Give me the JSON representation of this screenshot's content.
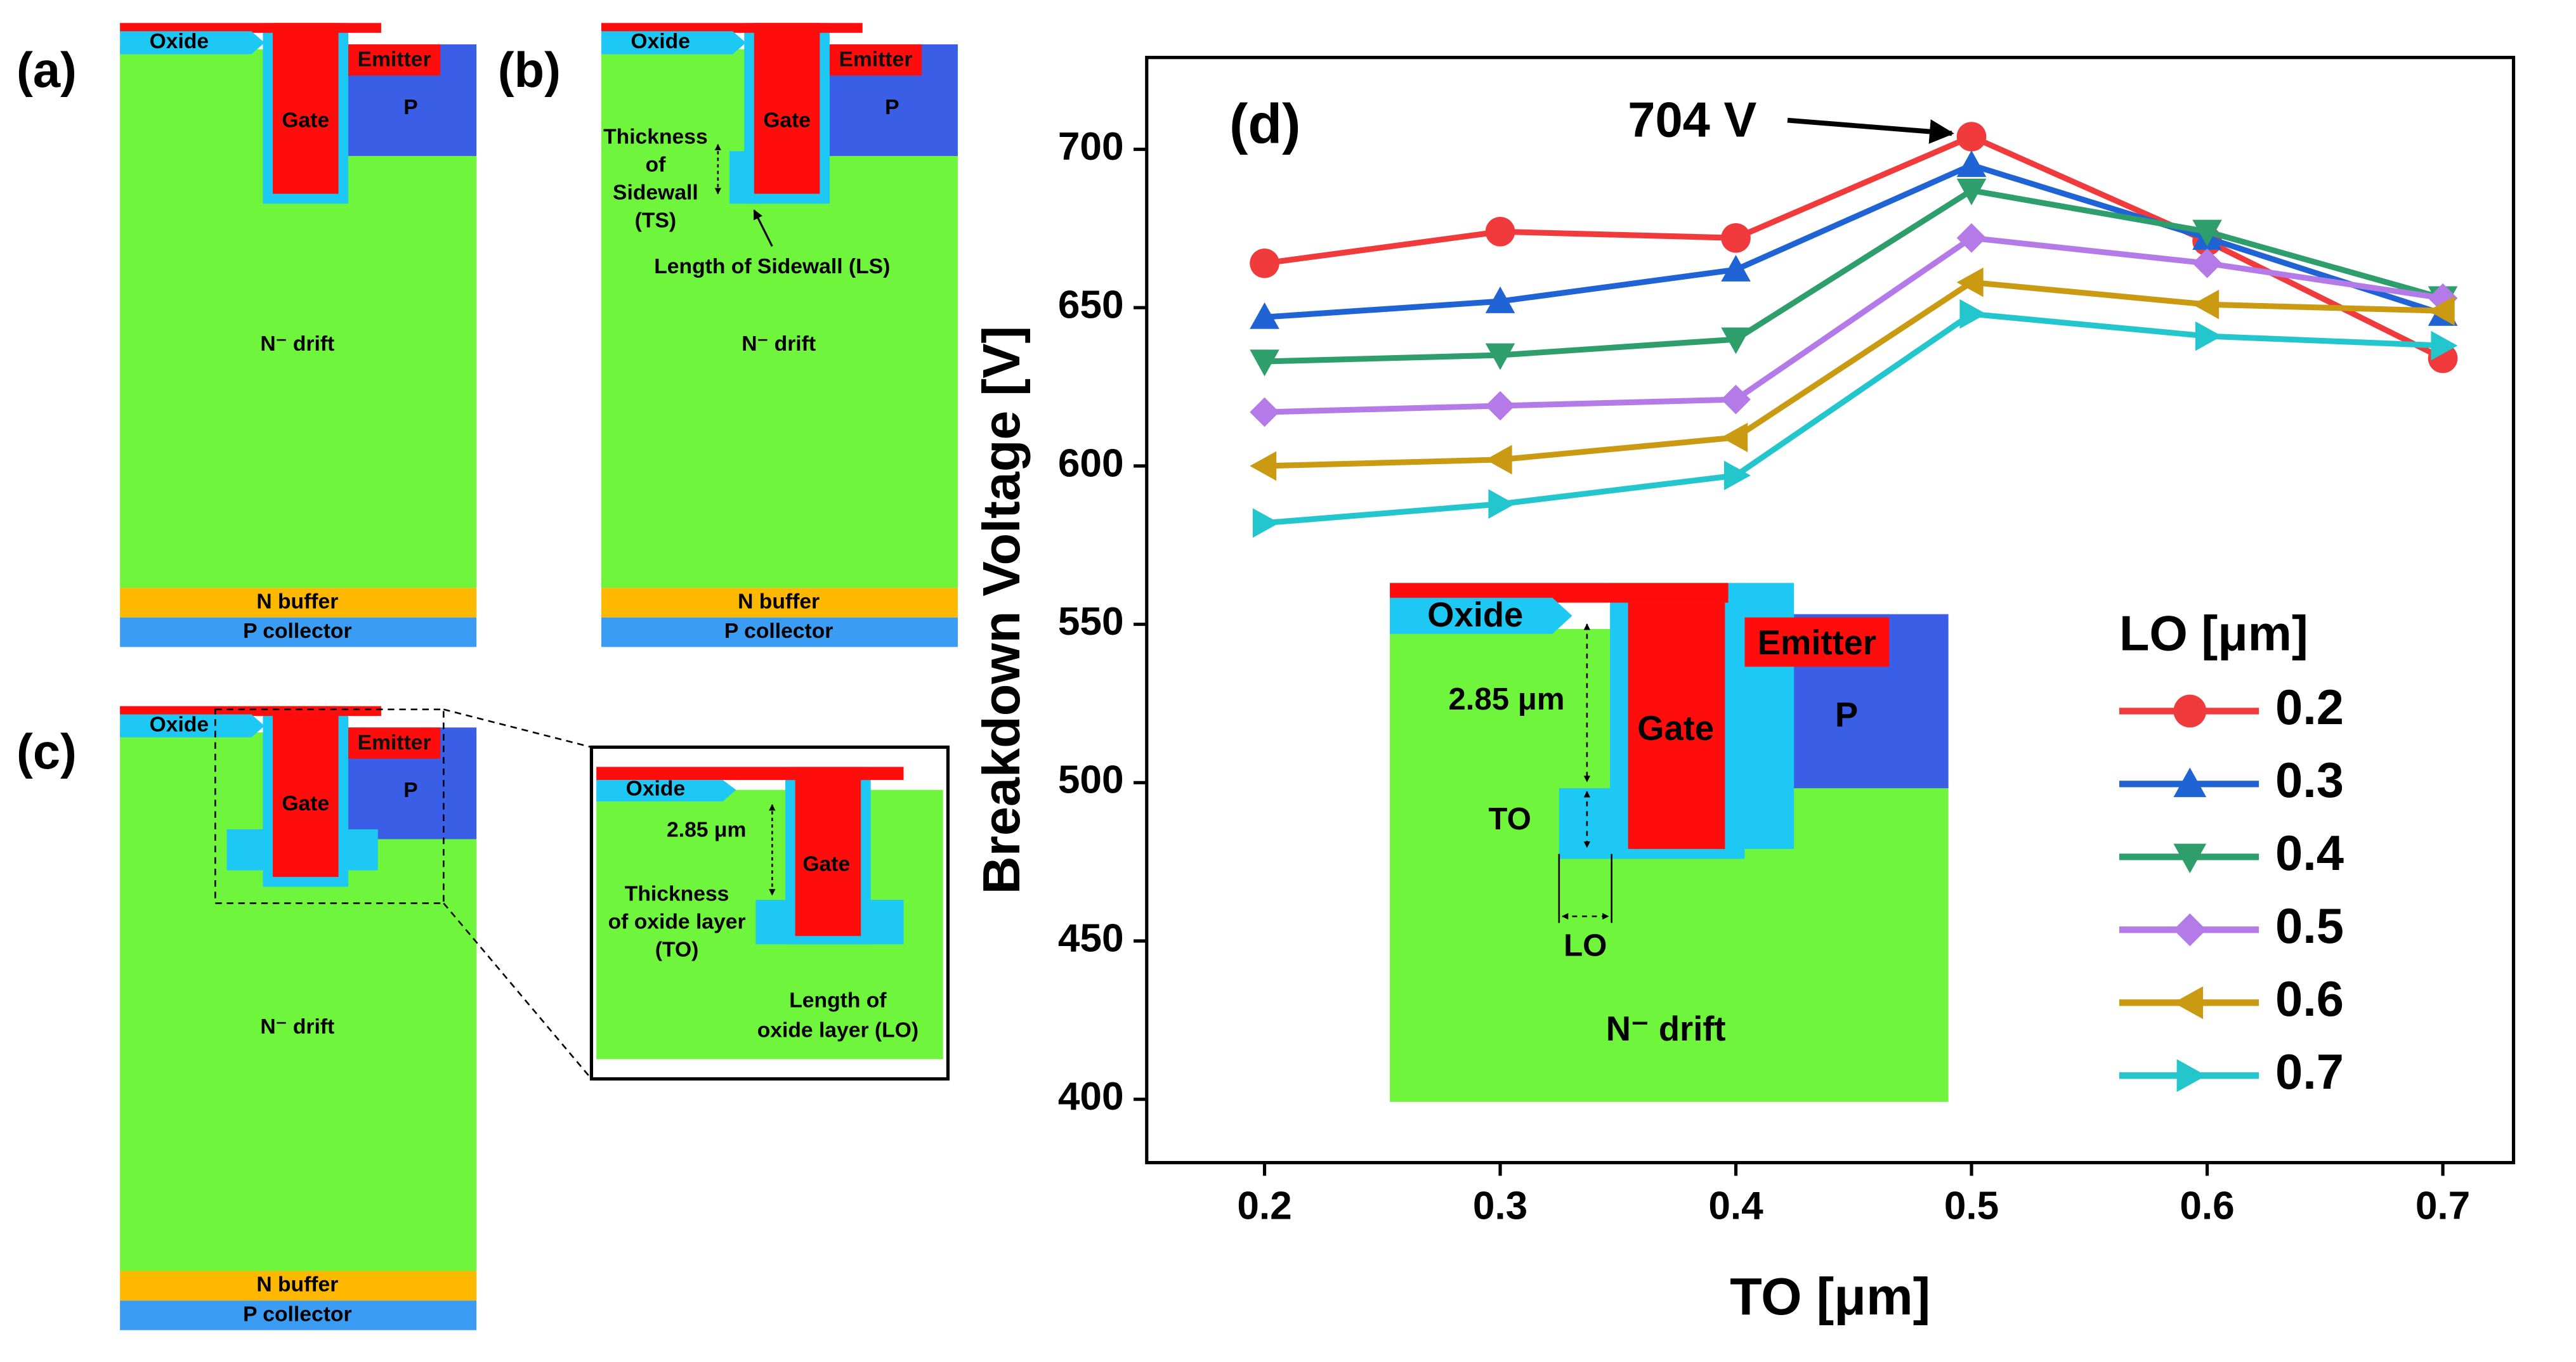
{
  "diagrams": {
    "a": {
      "label": "(a)",
      "oxide": "Oxide",
      "emitter": "Emitter",
      "gate": "Gate",
      "p": "P",
      "drift": "N⁻ drift",
      "buffer": "N buffer",
      "collector": "P collector"
    },
    "b": {
      "label": "(b)",
      "oxide": "Oxide",
      "emitter": "Emitter",
      "gate": "Gate",
      "p": "P",
      "drift": "N⁻ drift",
      "buffer": "N buffer",
      "collector": "P collector",
      "ts": [
        "Thickness",
        "of",
        "Sidewall",
        "(TS)"
      ],
      "ls": "Length of Sidewall (LS)"
    },
    "c": {
      "label": "(c)",
      "oxide": "Oxide",
      "emitter": "Emitter",
      "gate": "Gate",
      "p": "P",
      "drift": "N⁻ drift",
      "buffer": "N buffer",
      "collector": "P collector"
    },
    "zoom": {
      "oxide": "Oxide",
      "gate": "Gate",
      "dim": "2.85 μm",
      "to": [
        "Thickness",
        "of oxide layer",
        "(TO)"
      ],
      "lo": [
        "Length of",
        "oxide layer (LO)"
      ]
    },
    "inset": {
      "oxide": "Oxide",
      "emitter": "Emitter",
      "gate": "Gate",
      "p": "P",
      "dim": "2.85 μm",
      "to": "TO",
      "lo": "LO",
      "drift": "N⁻ drift"
    }
  },
  "chart_data": {
    "type": "line",
    "panel_label": "(d)",
    "x": [
      0.2,
      0.3,
      0.4,
      0.5,
      0.6,
      0.7
    ],
    "xlabel": "TO [μm]",
    "ylabel": "Breakdown Voltage [V]",
    "xlim": [
      0.15,
      0.73
    ],
    "ylim": [
      380,
      729
    ],
    "xticks": [
      0.2,
      0.3,
      0.4,
      0.5,
      0.6,
      0.7
    ],
    "yticks": [
      400,
      450,
      500,
      550,
      600,
      650,
      700
    ],
    "legend_title": "LO [μm]",
    "annotation": {
      "text": "704 V",
      "series": 0,
      "index": 3
    },
    "series": [
      {
        "name": "0.2",
        "color": "#f03a3c",
        "marker": "circle",
        "values": [
          664,
          674,
          672,
          704,
          671,
          634
        ]
      },
      {
        "name": "0.3",
        "color": "#1f63d4",
        "marker": "triangle-up",
        "values": [
          647,
          652,
          662,
          695,
          672,
          648
        ]
      },
      {
        "name": "0.4",
        "color": "#2e9e6c",
        "marker": "triangle-down",
        "values": [
          633,
          635,
          640,
          687,
          674,
          653
        ]
      },
      {
        "name": "0.5",
        "color": "#b47be8",
        "marker": "diamond",
        "values": [
          617,
          619,
          621,
          672,
          664,
          653
        ]
      },
      {
        "name": "0.6",
        "color": "#c99a12",
        "marker": "triangle-left",
        "values": [
          600,
          602,
          609,
          658,
          651,
          649
        ]
      },
      {
        "name": "0.7",
        "color": "#22c6cc",
        "marker": "triangle-right",
        "values": [
          582,
          588,
          597,
          648,
          641,
          638
        ]
      }
    ]
  }
}
